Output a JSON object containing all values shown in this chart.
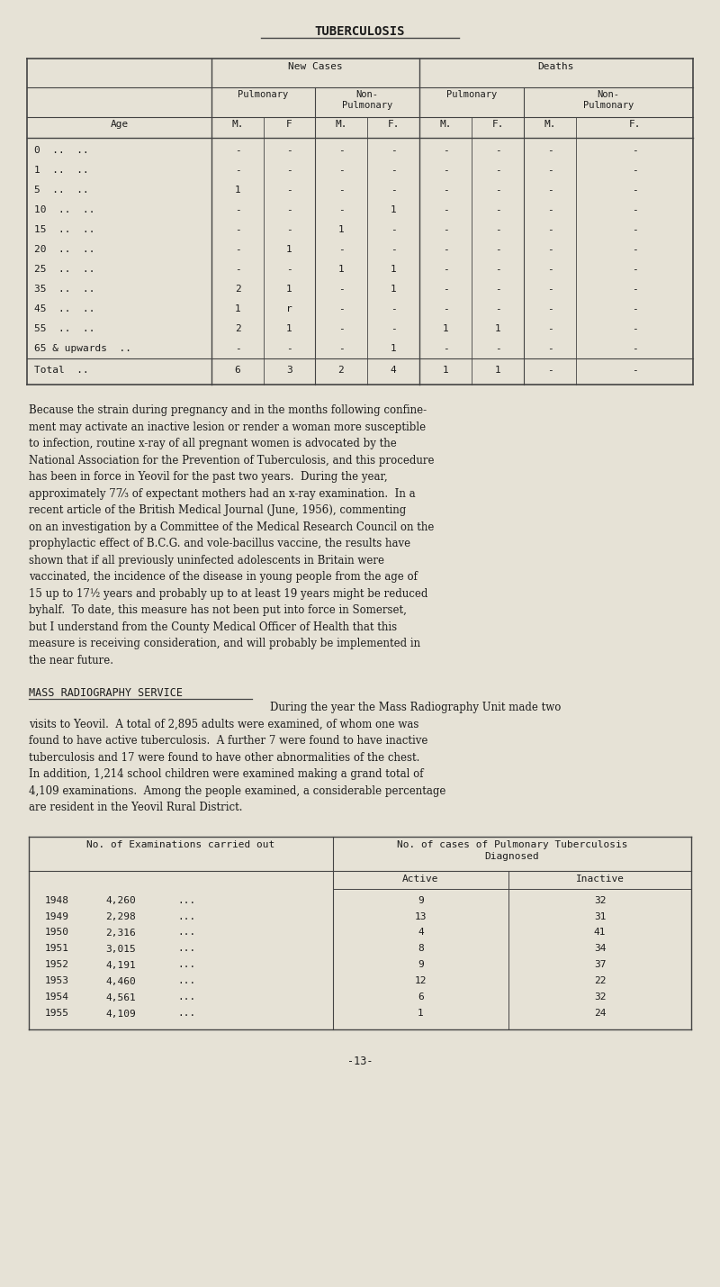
{
  "bg_color": "#e6e2d6",
  "text_color": "#1c1c1c",
  "page_width": 8.0,
  "page_height": 14.29,
  "dpi": 100,
  "title": "TUBERCULOSIS",
  "table1_rows": [
    [
      "0  ..  ..",
      "-",
      "-",
      "-",
      "-",
      "-",
      "-",
      "-",
      "-"
    ],
    [
      "1  ..  ..",
      "-",
      "-",
      "-",
      "-",
      "-",
      "-",
      "-",
      "-"
    ],
    [
      "5  ..  ..",
      "1",
      "-",
      "-",
      "-",
      "-",
      "-",
      "-",
      "-"
    ],
    [
      "10  ..  ..",
      "-",
      "-",
      "-",
      "1",
      "-",
      "-",
      "-",
      "-"
    ],
    [
      "15  ..  ..",
      "-",
      "-",
      "1",
      "-",
      "-",
      "-",
      "-",
      "-"
    ],
    [
      "20  ..  ..",
      "-",
      "1",
      "-",
      "-",
      "-",
      "-",
      "-",
      "-"
    ],
    [
      "25  ..  ..",
      "-",
      "-",
      "1",
      "1",
      "-",
      "-",
      "-",
      "-"
    ],
    [
      "35  ..  ..",
      "2",
      "1",
      "-",
      "1",
      "-",
      "-",
      "-",
      "-"
    ],
    [
      "45  ..  ..",
      "1",
      "r",
      "-",
      "-",
      "-",
      "-",
      "-",
      "-"
    ],
    [
      "55  ..  ..",
      "2",
      "1",
      "-",
      "-",
      "1",
      "1",
      "-",
      "-"
    ],
    [
      "65 & upwards  ..",
      "-",
      "-",
      "-",
      "1",
      "-",
      "-",
      "-",
      "-"
    ],
    [
      "Total  ..",
      "6",
      "3",
      "2",
      "4",
      "1",
      "1",
      "-",
      "-"
    ]
  ],
  "paragraph1_lines": [
    "Because the strain during pregnancy and in the months following confine-",
    "ment may activate an inactive lesion or render a woman more susceptible",
    "to infection, routine x-ray of all pregnant women is advocated by the",
    "National Association for the Prevention of Tuberculosis, and this procedure",
    "has been in force in Yeovil for the past two years.  During the year,",
    "approximately 77⁄₃ of expectant mothers had an x-ray examination.  In a",
    "recent article of the British Medical Journal (June, 1956), commenting",
    "on an investigation by a Committee of the Medical Research Council on the",
    "prophylactic effect of B.C.G. and vole-bacillus vaccine, the results have",
    "shown that if all previously uninfected adolescents in Britain were",
    "vaccinated, the incidence of the disease in young people from the age of",
    "15 up to 17½ years and probably up to at least 19 years might be reduced",
    "byhalf.  To date, this measure has not been put into force in Somerset,",
    "but I understand from the County Medical Officer of Health that this",
    "measure is receiving consideration, and will probably be implemented in",
    "the near future."
  ],
  "section_title": "MASS RADIOGRAPHY SERVICE",
  "paragraph2_lines": [
    "During the year the Mass Radiography Unit made two",
    "visits to Yeovil.  A total of 2,895 adults were examined, of whom one was",
    "found to have active tuberculosis.  A further 7 were found to have inactive",
    "tuberculosis and 17 were found to have other abnormalities of the chest.",
    "In addition, 1,214 school children were examined making a grand total of",
    "4,109 examinations.  Among the people examined, a considerable percentage",
    "are resident in the Yeovil Rural District."
  ],
  "table2_rows": [
    [
      "1948",
      "4,260",
      "...",
      "9",
      "32"
    ],
    [
      "1949",
      "2,298",
      "...",
      "13",
      "31"
    ],
    [
      "1950",
      "2,316",
      "...",
      "4",
      "41"
    ],
    [
      "1951",
      "3,015",
      "...",
      "8",
      "34"
    ],
    [
      "1952",
      "4,191",
      "...",
      "9",
      "37"
    ],
    [
      "1953",
      "4,460",
      "...",
      "12",
      "22"
    ],
    [
      "1954",
      "4,561",
      "...",
      "6",
      "32"
    ],
    [
      "1955",
      "4,109",
      "...",
      "1",
      "24"
    ]
  ],
  "page_number": "-13-",
  "font_size_body": 8.5,
  "font_size_title": 10.0,
  "font_size_table": 8.0
}
